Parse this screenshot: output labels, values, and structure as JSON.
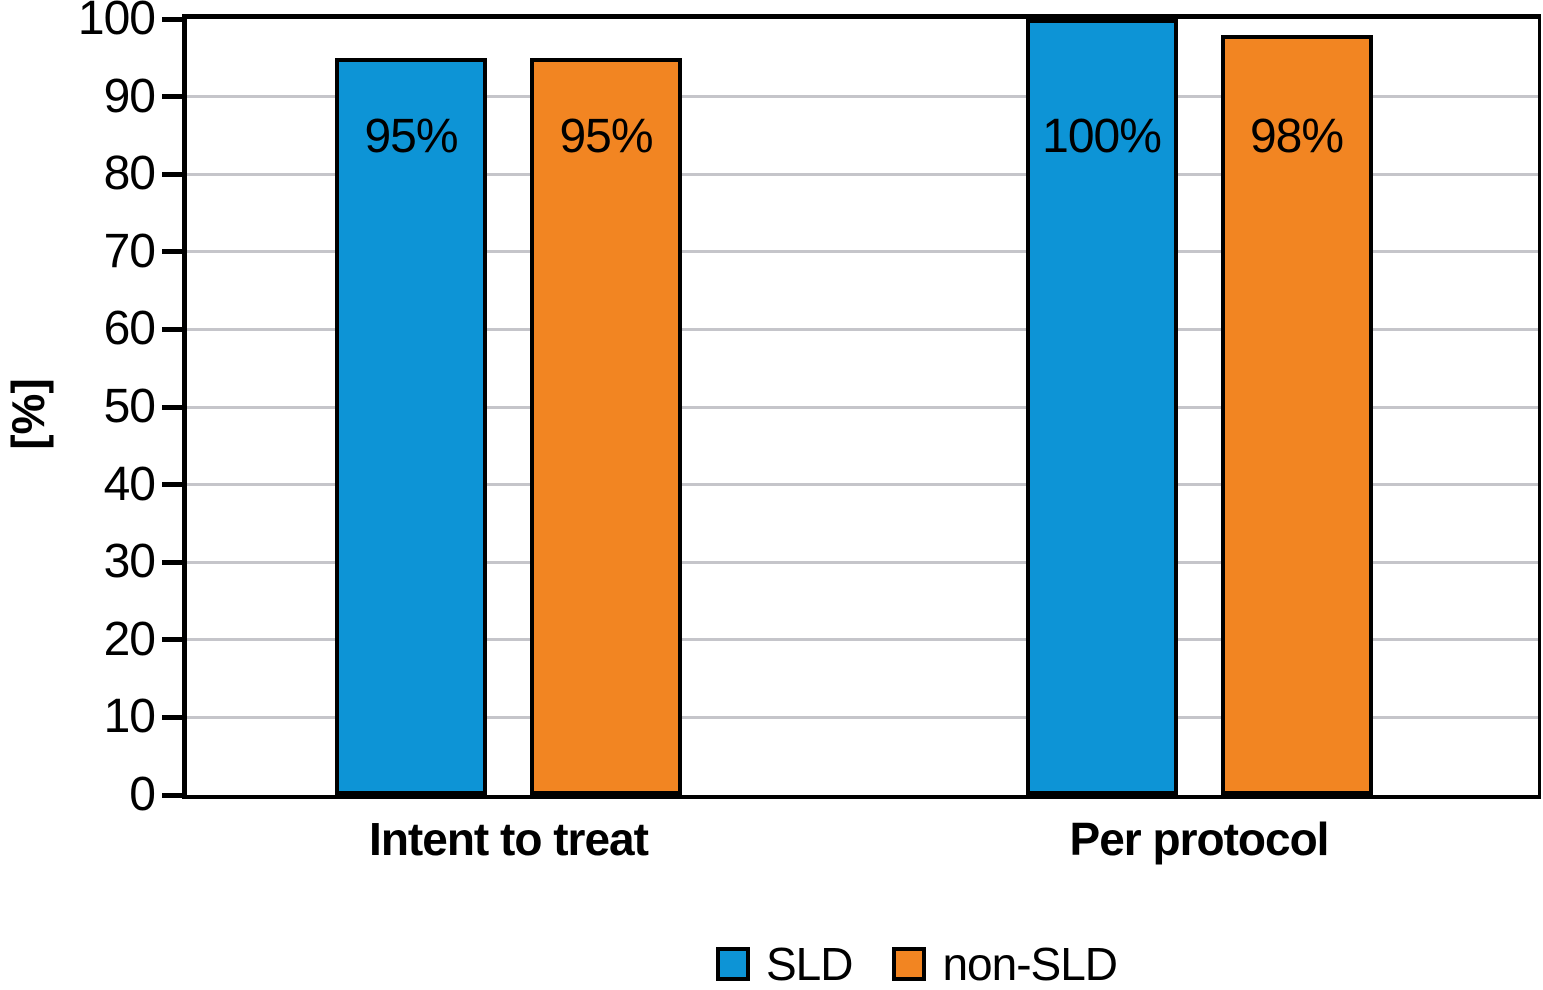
{
  "chart_data": {
    "type": "bar",
    "title": "",
    "categories": [
      "Intent to treat",
      "Per protocol"
    ],
    "series": [
      {
        "name": "SLD",
        "color": "#0d94d6",
        "values": [
          95,
          100
        ],
        "value_labels": [
          "95%",
          "100%"
        ]
      },
      {
        "name": "non-SLD",
        "color": "#f28522",
        "values": [
          95,
          98
        ],
        "value_labels": [
          "95%",
          "98%"
        ]
      }
    ],
    "xlabel": "",
    "ylabel": "[%]",
    "ylim": [
      0,
      100
    ],
    "yticks": [
      0,
      10,
      20,
      30,
      40,
      50,
      60,
      70,
      80,
      90,
      100
    ],
    "ytick_labels": [
      "0",
      "10",
      "20",
      "30",
      "40",
      "50",
      "60",
      "70",
      "80",
      "90",
      "100"
    ],
    "grid": "horizontal",
    "gridline_color": "#c5c5ca",
    "axis_color": "#000000",
    "bar_border_color": "#000000",
    "value_label_color": "#000000",
    "legend": {
      "position": "bottom",
      "entries": [
        "SLD",
        "non-SLD"
      ]
    }
  }
}
